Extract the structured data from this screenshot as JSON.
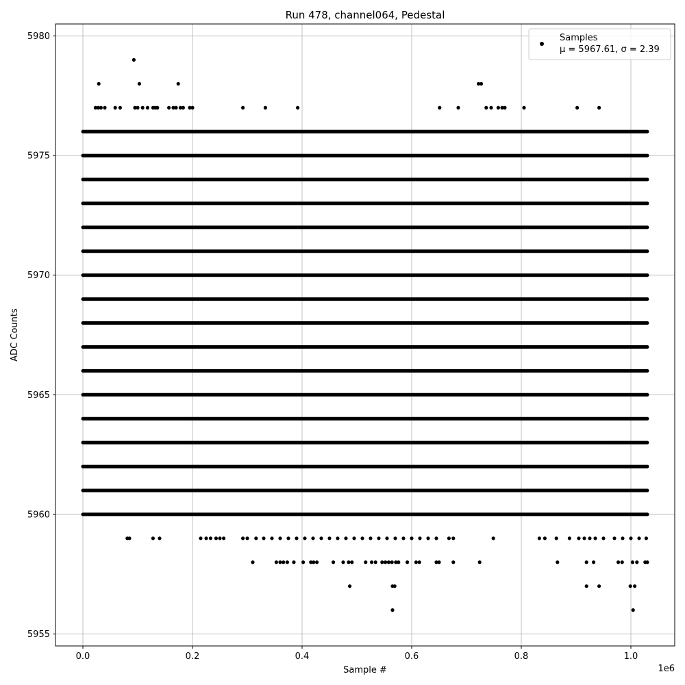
{
  "chart_data": {
    "type": "scatter",
    "title": "Run 478, channel064, Pedestal",
    "xlabel": "Sample #",
    "ylabel": "ADC Counts",
    "x_offset_label": "1e6",
    "xlim": [
      -0.05,
      1.08
    ],
    "ylim": [
      5954.5,
      5980.5
    ],
    "x_ticks": [
      0.0,
      0.2,
      0.4,
      0.6,
      0.8,
      1.0
    ],
    "x_tick_labels": [
      "0.0",
      "0.2",
      "0.4",
      "0.6",
      "0.8",
      "1.0"
    ],
    "y_ticks": [
      5955,
      5960,
      5965,
      5970,
      5975,
      5980
    ],
    "y_tick_labels": [
      "5955",
      "5960",
      "5965",
      "5970",
      "5975",
      "5980"
    ],
    "grid": true,
    "legend": {
      "placement": "top-right",
      "label": "Samples",
      "stats": "μ = 5967.61, σ = 2.39"
    },
    "marker_color": "#000000",
    "series": [
      {
        "name": "Samples",
        "dense_levels": [
          {
            "y": 5961,
            "x_range": [
              0.0,
              1.03
            ]
          },
          {
            "y": 5962,
            "x_range": [
              0.0,
              1.03
            ]
          },
          {
            "y": 5963,
            "x_range": [
              0.0,
              1.03
            ]
          },
          {
            "y": 5964,
            "x_range": [
              0.0,
              1.03
            ]
          },
          {
            "y": 5965,
            "x_range": [
              0.0,
              1.03
            ]
          },
          {
            "y": 5966,
            "x_range": [
              0.0,
              1.03
            ]
          },
          {
            "y": 5967,
            "x_range": [
              0.0,
              1.03
            ]
          },
          {
            "y": 5968,
            "x_range": [
              0.0,
              1.03
            ]
          },
          {
            "y": 5969,
            "x_range": [
              0.0,
              1.03
            ]
          },
          {
            "y": 5970,
            "x_range": [
              0.0,
              1.03
            ]
          },
          {
            "y": 5971,
            "x_range": [
              0.0,
              1.03
            ]
          },
          {
            "y": 5972,
            "x_range": [
              0.0,
              1.03
            ]
          },
          {
            "y": 5973,
            "x_range": [
              0.0,
              1.03
            ]
          },
          {
            "y": 5974,
            "x_range": [
              0.0,
              1.03
            ]
          },
          {
            "y": 5975,
            "x_range": [
              0.0,
              1.03
            ]
          },
          {
            "y": 5976,
            "x_range": [
              0.0,
              1.03
            ]
          },
          {
            "y": 5960,
            "x_range": [
              0.0,
              1.03
            ]
          }
        ],
        "sparse_points": [
          {
            "x": 0.093,
            "y": 5979
          },
          {
            "x": 0.029,
            "y": 5978
          },
          {
            "x": 0.103,
            "y": 5978
          },
          {
            "x": 0.174,
            "y": 5978
          },
          {
            "x": 0.722,
            "y": 5978
          },
          {
            "x": 0.727,
            "y": 5978
          },
          {
            "x": 0.023,
            "y": 5977
          },
          {
            "x": 0.028,
            "y": 5977
          },
          {
            "x": 0.033,
            "y": 5977
          },
          {
            "x": 0.04,
            "y": 5977
          },
          {
            "x": 0.059,
            "y": 5977
          },
          {
            "x": 0.068,
            "y": 5977
          },
          {
            "x": 0.095,
            "y": 5977
          },
          {
            "x": 0.1,
            "y": 5977
          },
          {
            "x": 0.109,
            "y": 5977
          },
          {
            "x": 0.118,
            "y": 5977
          },
          {
            "x": 0.128,
            "y": 5977
          },
          {
            "x": 0.132,
            "y": 5977
          },
          {
            "x": 0.136,
            "y": 5977
          },
          {
            "x": 0.157,
            "y": 5977
          },
          {
            "x": 0.165,
            "y": 5977
          },
          {
            "x": 0.17,
            "y": 5977
          },
          {
            "x": 0.178,
            "y": 5977
          },
          {
            "x": 0.183,
            "y": 5977
          },
          {
            "x": 0.195,
            "y": 5977
          },
          {
            "x": 0.2,
            "y": 5977
          },
          {
            "x": 0.292,
            "y": 5977
          },
          {
            "x": 0.333,
            "y": 5977
          },
          {
            "x": 0.392,
            "y": 5977
          },
          {
            "x": 0.651,
            "y": 5977
          },
          {
            "x": 0.685,
            "y": 5977
          },
          {
            "x": 0.736,
            "y": 5977
          },
          {
            "x": 0.745,
            "y": 5977
          },
          {
            "x": 0.758,
            "y": 5977
          },
          {
            "x": 0.765,
            "y": 5977
          },
          {
            "x": 0.77,
            "y": 5977
          },
          {
            "x": 0.805,
            "y": 5977
          },
          {
            "x": 0.902,
            "y": 5977
          },
          {
            "x": 0.942,
            "y": 5977
          },
          {
            "x": 0.081,
            "y": 5959
          },
          {
            "x": 0.085,
            "y": 5959
          },
          {
            "x": 0.128,
            "y": 5959
          },
          {
            "x": 0.14,
            "y": 5959
          },
          {
            "x": 0.215,
            "y": 5959
          },
          {
            "x": 0.225,
            "y": 5959
          },
          {
            "x": 0.233,
            "y": 5959
          },
          {
            "x": 0.243,
            "y": 5959
          },
          {
            "x": 0.25,
            "y": 5959
          },
          {
            "x": 0.257,
            "y": 5959
          },
          {
            "x": 0.292,
            "y": 5959
          },
          {
            "x": 0.3,
            "y": 5959
          },
          {
            "x": 0.316,
            "y": 5959
          },
          {
            "x": 0.33,
            "y": 5959
          },
          {
            "x": 0.345,
            "y": 5959
          },
          {
            "x": 0.36,
            "y": 5959
          },
          {
            "x": 0.375,
            "y": 5959
          },
          {
            "x": 0.39,
            "y": 5959
          },
          {
            "x": 0.405,
            "y": 5959
          },
          {
            "x": 0.42,
            "y": 5959
          },
          {
            "x": 0.435,
            "y": 5959
          },
          {
            "x": 0.45,
            "y": 5959
          },
          {
            "x": 0.465,
            "y": 5959
          },
          {
            "x": 0.48,
            "y": 5959
          },
          {
            "x": 0.495,
            "y": 5959
          },
          {
            "x": 0.51,
            "y": 5959
          },
          {
            "x": 0.525,
            "y": 5959
          },
          {
            "x": 0.54,
            "y": 5959
          },
          {
            "x": 0.555,
            "y": 5959
          },
          {
            "x": 0.57,
            "y": 5959
          },
          {
            "x": 0.585,
            "y": 5959
          },
          {
            "x": 0.6,
            "y": 5959
          },
          {
            "x": 0.615,
            "y": 5959
          },
          {
            "x": 0.63,
            "y": 5959
          },
          {
            "x": 0.645,
            "y": 5959
          },
          {
            "x": 0.668,
            "y": 5959
          },
          {
            "x": 0.676,
            "y": 5959
          },
          {
            "x": 0.749,
            "y": 5959
          },
          {
            "x": 0.833,
            "y": 5959
          },
          {
            "x": 0.843,
            "y": 5959
          },
          {
            "x": 0.864,
            "y": 5959
          },
          {
            "x": 0.888,
            "y": 5959
          },
          {
            "x": 0.905,
            "y": 5959
          },
          {
            "x": 0.915,
            "y": 5959
          },
          {
            "x": 0.925,
            "y": 5959
          },
          {
            "x": 0.935,
            "y": 5959
          },
          {
            "x": 0.95,
            "y": 5959
          },
          {
            "x": 0.97,
            "y": 5959
          },
          {
            "x": 0.985,
            "y": 5959
          },
          {
            "x": 1.0,
            "y": 5959
          },
          {
            "x": 1.015,
            "y": 5959
          },
          {
            "x": 1.028,
            "y": 5959
          },
          {
            "x": 0.31,
            "y": 5958
          },
          {
            "x": 0.353,
            "y": 5958
          },
          {
            "x": 0.36,
            "y": 5958
          },
          {
            "x": 0.366,
            "y": 5958
          },
          {
            "x": 0.373,
            "y": 5958
          },
          {
            "x": 0.385,
            "y": 5958
          },
          {
            "x": 0.402,
            "y": 5958
          },
          {
            "x": 0.416,
            "y": 5958
          },
          {
            "x": 0.421,
            "y": 5958
          },
          {
            "x": 0.427,
            "y": 5958
          },
          {
            "x": 0.457,
            "y": 5958
          },
          {
            "x": 0.475,
            "y": 5958
          },
          {
            "x": 0.485,
            "y": 5958
          },
          {
            "x": 0.491,
            "y": 5958
          },
          {
            "x": 0.516,
            "y": 5958
          },
          {
            "x": 0.527,
            "y": 5958
          },
          {
            "x": 0.534,
            "y": 5958
          },
          {
            "x": 0.546,
            "y": 5958
          },
          {
            "x": 0.552,
            "y": 5958
          },
          {
            "x": 0.558,
            "y": 5958
          },
          {
            "x": 0.564,
            "y": 5958
          },
          {
            "x": 0.571,
            "y": 5958
          },
          {
            "x": 0.576,
            "y": 5958
          },
          {
            "x": 0.592,
            "y": 5958
          },
          {
            "x": 0.608,
            "y": 5958
          },
          {
            "x": 0.614,
            "y": 5958
          },
          {
            "x": 0.645,
            "y": 5958
          },
          {
            "x": 0.65,
            "y": 5958
          },
          {
            "x": 0.676,
            "y": 5958
          },
          {
            "x": 0.724,
            "y": 5958
          },
          {
            "x": 0.866,
            "y": 5958
          },
          {
            "x": 0.919,
            "y": 5958
          },
          {
            "x": 0.932,
            "y": 5958
          },
          {
            "x": 0.977,
            "y": 5958
          },
          {
            "x": 0.984,
            "y": 5958
          },
          {
            "x": 1.003,
            "y": 5958
          },
          {
            "x": 1.011,
            "y": 5958
          },
          {
            "x": 1.026,
            "y": 5958
          },
          {
            "x": 1.03,
            "y": 5958
          },
          {
            "x": 0.487,
            "y": 5957
          },
          {
            "x": 0.565,
            "y": 5957
          },
          {
            "x": 0.569,
            "y": 5957
          },
          {
            "x": 0.919,
            "y": 5957
          },
          {
            "x": 0.942,
            "y": 5957
          },
          {
            "x": 0.999,
            "y": 5957
          },
          {
            "x": 1.007,
            "y": 5957
          },
          {
            "x": 0.565,
            "y": 5956
          },
          {
            "x": 1.004,
            "y": 5956
          }
        ]
      }
    ]
  }
}
